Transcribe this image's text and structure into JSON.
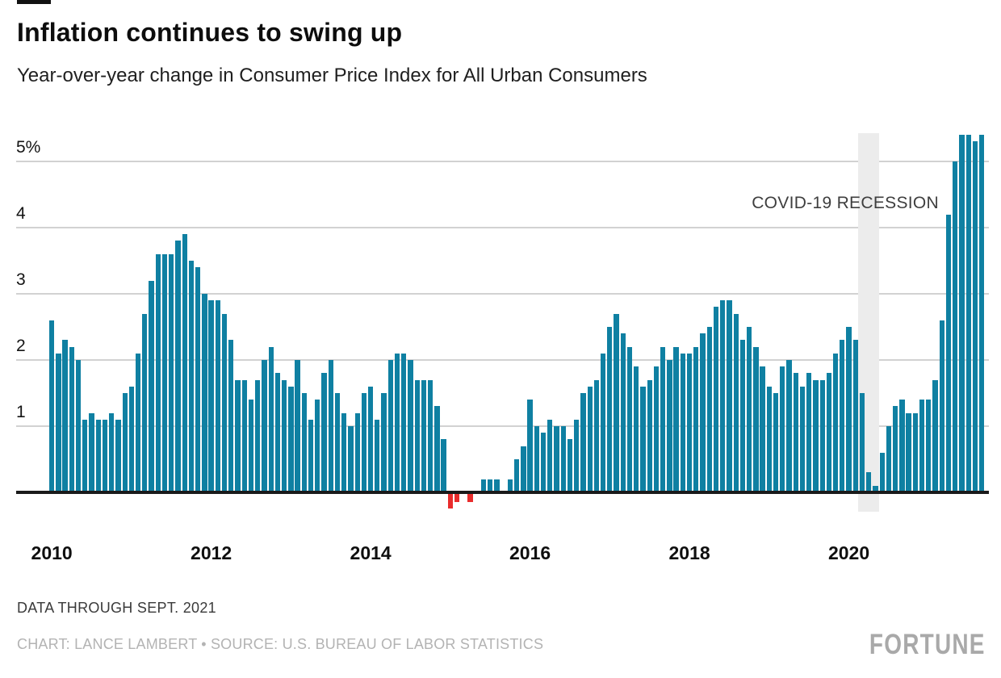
{
  "header": {
    "title": "Inflation continues to swing up",
    "subtitle": "Year-over-year change in Consumer Price Index for All Urban Consumers"
  },
  "footer": {
    "note": "DATA THROUGH SEPT. 2021",
    "credit": "CHART: LANCE LAMBERT • SOURCE: U.S. BUREAU OF LABOR STATISTICS",
    "brand": "FORTUNE"
  },
  "colors": {
    "bar_positive": "#0f80a2",
    "bar_negative": "#e92c2c",
    "recession_band": "#ececec",
    "gridline": "#d2d2d2",
    "axis_line": "#1a1a1a"
  },
  "chart_data": {
    "type": "bar",
    "title": "Inflation continues to swing up",
    "subtitle": "Year-over-year change in Consumer Price Index for All Urban Consumers",
    "series_name": "Year-over-year change in CPI for All Urban Consumers",
    "unit": "percent",
    "start_month": "2010-01",
    "end_month": "2021-09",
    "ylim": [
      -0.3,
      5.5
    ],
    "grid": "horizontal",
    "legend": "none",
    "y_ticks": [
      {
        "v": 5,
        "label": "5%"
      },
      {
        "v": 4,
        "label": "4"
      },
      {
        "v": 3,
        "label": "3"
      },
      {
        "v": 2,
        "label": "2"
      },
      {
        "v": 1,
        "label": "1"
      }
    ],
    "x_ticks": [
      {
        "year": 2010,
        "label": "2010"
      },
      {
        "year": 2012,
        "label": "2012"
      },
      {
        "year": 2014,
        "label": "2014"
      },
      {
        "year": 2016,
        "label": "2016"
      },
      {
        "year": 2018,
        "label": "2018"
      },
      {
        "year": 2020,
        "label": "2020"
      }
    ],
    "recession_band": {
      "label": "COVID-19 RECESSION",
      "start_month": "2020-03",
      "end_month": "2020-05"
    },
    "values_by_year": [
      {
        "year": 2010,
        "values": [
          2.6,
          2.1,
          2.3,
          2.2,
          2.0,
          1.1,
          1.2,
          1.1,
          1.1,
          1.2,
          1.1,
          1.5
        ]
      },
      {
        "year": 2011,
        "values": [
          1.6,
          2.1,
          2.7,
          3.2,
          3.6,
          3.6,
          3.6,
          3.8,
          3.9,
          3.5,
          3.4,
          3.0
        ]
      },
      {
        "year": 2012,
        "values": [
          2.9,
          2.9,
          2.7,
          2.3,
          1.7,
          1.7,
          1.4,
          1.7,
          2.0,
          2.2,
          1.8,
          1.7
        ]
      },
      {
        "year": 2013,
        "values": [
          1.6,
          2.0,
          1.5,
          1.1,
          1.4,
          1.8,
          2.0,
          1.5,
          1.2,
          1.0,
          1.2,
          1.5
        ]
      },
      {
        "year": 2014,
        "values": [
          1.6,
          1.1,
          1.5,
          2.0,
          2.1,
          2.1,
          2.0,
          1.7,
          1.7,
          1.7,
          1.3,
          0.8
        ]
      },
      {
        "year": 2015,
        "values": [
          -0.2,
          -0.1,
          0.0,
          -0.1,
          0.0,
          0.2,
          0.2,
          0.2,
          0.0,
          0.2,
          0.5,
          0.7
        ]
      },
      {
        "year": 2016,
        "values": [
          1.4,
          1.0,
          0.9,
          1.1,
          1.0,
          1.0,
          0.8,
          1.1,
          1.5,
          1.6,
          1.7,
          2.1
        ]
      },
      {
        "year": 2017,
        "values": [
          2.5,
          2.7,
          2.4,
          2.2,
          1.9,
          1.6,
          1.7,
          1.9,
          2.2,
          2.0,
          2.2,
          2.1
        ]
      },
      {
        "year": 2018,
        "values": [
          2.1,
          2.2,
          2.4,
          2.5,
          2.8,
          2.9,
          2.9,
          2.7,
          2.3,
          2.5,
          2.2,
          1.9
        ]
      },
      {
        "year": 2019,
        "values": [
          1.6,
          1.5,
          1.9,
          2.0,
          1.8,
          1.6,
          1.8,
          1.7,
          1.7,
          1.8,
          2.1,
          2.3
        ]
      },
      {
        "year": 2020,
        "values": [
          2.5,
          2.3,
          1.5,
          0.3,
          0.1,
          0.6,
          1.0,
          1.3,
          1.4,
          1.2,
          1.2,
          1.4
        ]
      },
      {
        "year": 2021,
        "values": [
          1.4,
          1.7,
          2.6,
          4.2,
          5.0,
          5.4,
          5.4,
          5.3,
          5.4
        ]
      }
    ]
  }
}
